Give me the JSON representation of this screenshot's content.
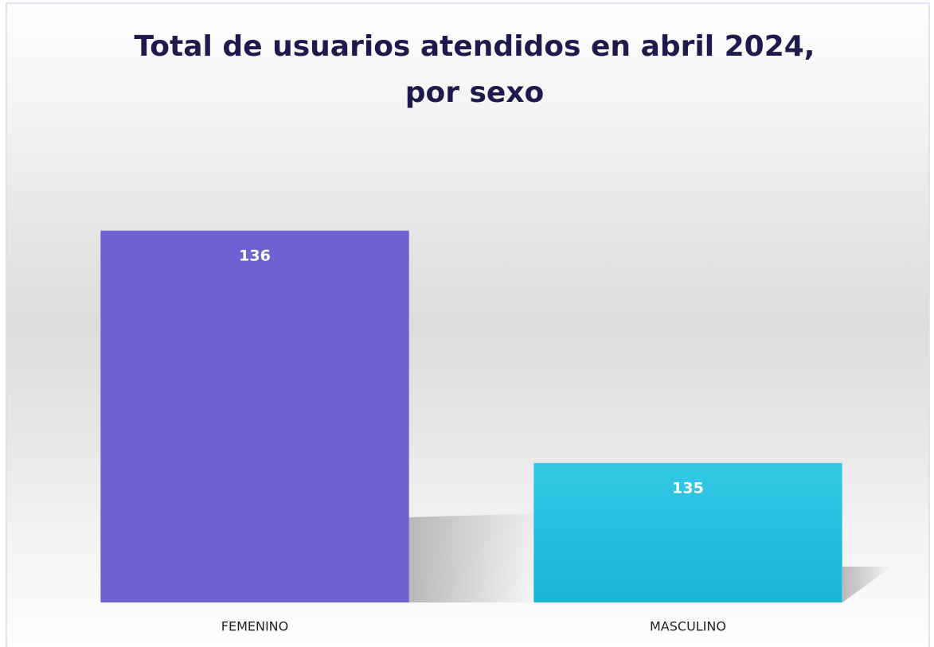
{
  "chart_data": {
    "type": "bar",
    "title": [
      "Total de usuarios atendidos en abril 2024,",
      "por sexo"
    ],
    "categories": [
      "FEMENINO",
      "MASCULINO"
    ],
    "values": [
      136,
      135
    ],
    "colors": [
      "#6e62d0",
      "#33c9e6"
    ],
    "ylim": [
      134.4,
      136.4
    ]
  }
}
